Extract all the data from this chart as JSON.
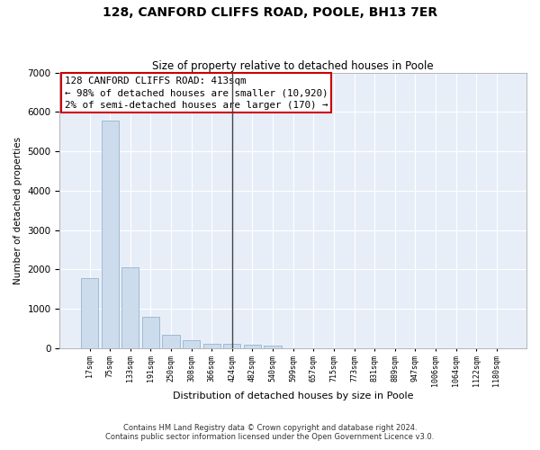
{
  "title": "128, CANFORD CLIFFS ROAD, POOLE, BH13 7ER",
  "subtitle": "Size of property relative to detached houses in Poole",
  "xlabel": "Distribution of detached houses by size in Poole",
  "ylabel": "Number of detached properties",
  "bar_color": "#ccdcec",
  "bar_edge_color": "#88aacc",
  "background_color": "#e8eef8",
  "grid_color": "#ffffff",
  "annotation_box_edgecolor": "#cc0000",
  "vline_color": "#444444",
  "categories": [
    "17sqm",
    "75sqm",
    "133sqm",
    "191sqm",
    "250sqm",
    "308sqm",
    "366sqm",
    "424sqm",
    "482sqm",
    "540sqm",
    "599sqm",
    "657sqm",
    "715sqm",
    "773sqm",
    "831sqm",
    "889sqm",
    "947sqm",
    "1006sqm",
    "1064sqm",
    "1122sqm",
    "1180sqm"
  ],
  "values": [
    1780,
    5780,
    2060,
    800,
    340,
    190,
    115,
    110,
    95,
    65,
    0,
    0,
    0,
    0,
    0,
    0,
    0,
    0,
    0,
    0,
    0
  ],
  "ylim": [
    0,
    7000
  ],
  "yticks": [
    0,
    1000,
    2000,
    3000,
    4000,
    5000,
    6000,
    7000
  ],
  "vline_x": 7,
  "annotation_line1": "128 CANFORD CLIFFS ROAD: 413sqm",
  "annotation_line2": "← 98% of detached houses are smaller (10,920)",
  "annotation_line3": "2% of semi-detached houses are larger (170) →",
  "footnote1": "Contains HM Land Registry data © Crown copyright and database right 2024.",
  "footnote2": "Contains public sector information licensed under the Open Government Licence v3.0."
}
